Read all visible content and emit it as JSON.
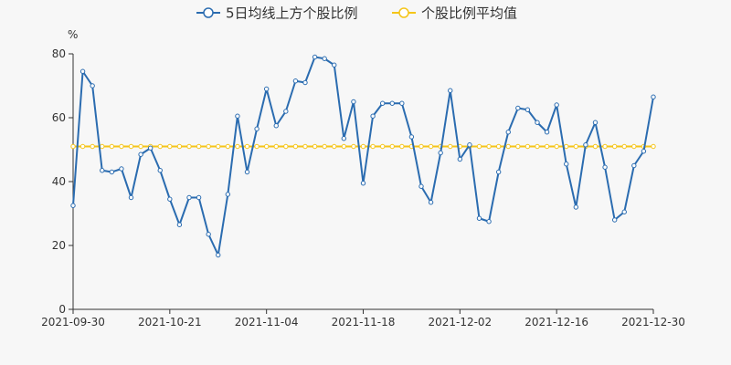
{
  "chart_data": {
    "type": "line",
    "title": "",
    "xlabel": "",
    "ylabel": "%",
    "ylim": [
      0,
      80
    ],
    "yticks": [
      0,
      20,
      40,
      60,
      80
    ],
    "x_tick_labels": [
      "2021-09-30",
      "2021-10-21",
      "2021-11-04",
      "2021-11-18",
      "2021-12-02",
      "2021-12-16",
      "2021-12-30"
    ],
    "x": [
      "2021-09-30",
      "2021-10-08",
      "2021-10-11",
      "2021-10-12",
      "2021-10-13",
      "2021-10-14",
      "2021-10-15",
      "2021-10-18",
      "2021-10-19",
      "2021-10-20",
      "2021-10-21",
      "2021-10-22",
      "2021-10-25",
      "2021-10-26",
      "2021-10-27",
      "2021-10-28",
      "2021-10-29",
      "2021-11-01",
      "2021-11-02",
      "2021-11-03",
      "2021-11-04",
      "2021-11-05",
      "2021-11-08",
      "2021-11-09",
      "2021-11-10",
      "2021-11-11",
      "2021-11-12",
      "2021-11-15",
      "2021-11-16",
      "2021-11-17",
      "2021-11-18",
      "2021-11-19",
      "2021-11-22",
      "2021-11-23",
      "2021-11-24",
      "2021-11-25",
      "2021-11-26",
      "2021-11-29",
      "2021-11-30",
      "2021-12-01",
      "2021-12-02",
      "2021-12-03",
      "2021-12-06",
      "2021-12-07",
      "2021-12-08",
      "2021-12-09",
      "2021-12-10",
      "2021-12-13",
      "2021-12-14",
      "2021-12-15",
      "2021-12-16",
      "2021-12-17",
      "2021-12-20",
      "2021-12-21",
      "2021-12-22",
      "2021-12-23",
      "2021-12-24",
      "2021-12-27",
      "2021-12-28",
      "2021-12-29",
      "2021-12-30"
    ],
    "series": [
      {
        "name": "5日均线上方个股比例",
        "color": "#2b6cb0",
        "values": [
          32.5,
          74.5,
          70,
          43.5,
          43,
          44,
          35,
          48.5,
          50.5,
          43.5,
          34.5,
          26.5,
          35,
          35,
          23.5,
          17,
          36,
          60.5,
          43,
          56.5,
          69,
          57.5,
          62,
          71.5,
          71,
          79,
          78.5,
          76.5,
          53.5,
          65,
          39.5,
          60.5,
          64.5,
          64.5,
          64.5,
          54,
          38.5,
          33.5,
          49,
          68.5,
          47,
          51.5,
          28.5,
          27.5,
          43,
          55.5,
          63,
          62.5,
          58.5,
          55.5,
          64,
          45.5,
          32,
          51.5,
          58.5,
          44.5,
          28,
          30.5,
          45,
          49.5,
          66.5
        ]
      },
      {
        "name": "个股比例平均值",
        "color": "#f5c518",
        "values": [
          51,
          51,
          51,
          51,
          51,
          51,
          51,
          51,
          51,
          51,
          51,
          51,
          51,
          51,
          51,
          51,
          51,
          51,
          51,
          51,
          51,
          51,
          51,
          51,
          51,
          51,
          51,
          51,
          51,
          51,
          51,
          51,
          51,
          51,
          51,
          51,
          51,
          51,
          51,
          51,
          51,
          51,
          51,
          51,
          51,
          51,
          51,
          51,
          51,
          51,
          51,
          51,
          51,
          51,
          51,
          51,
          51,
          51,
          51,
          51,
          51
        ]
      }
    ],
    "legend_position": "top-center",
    "grid": false
  }
}
